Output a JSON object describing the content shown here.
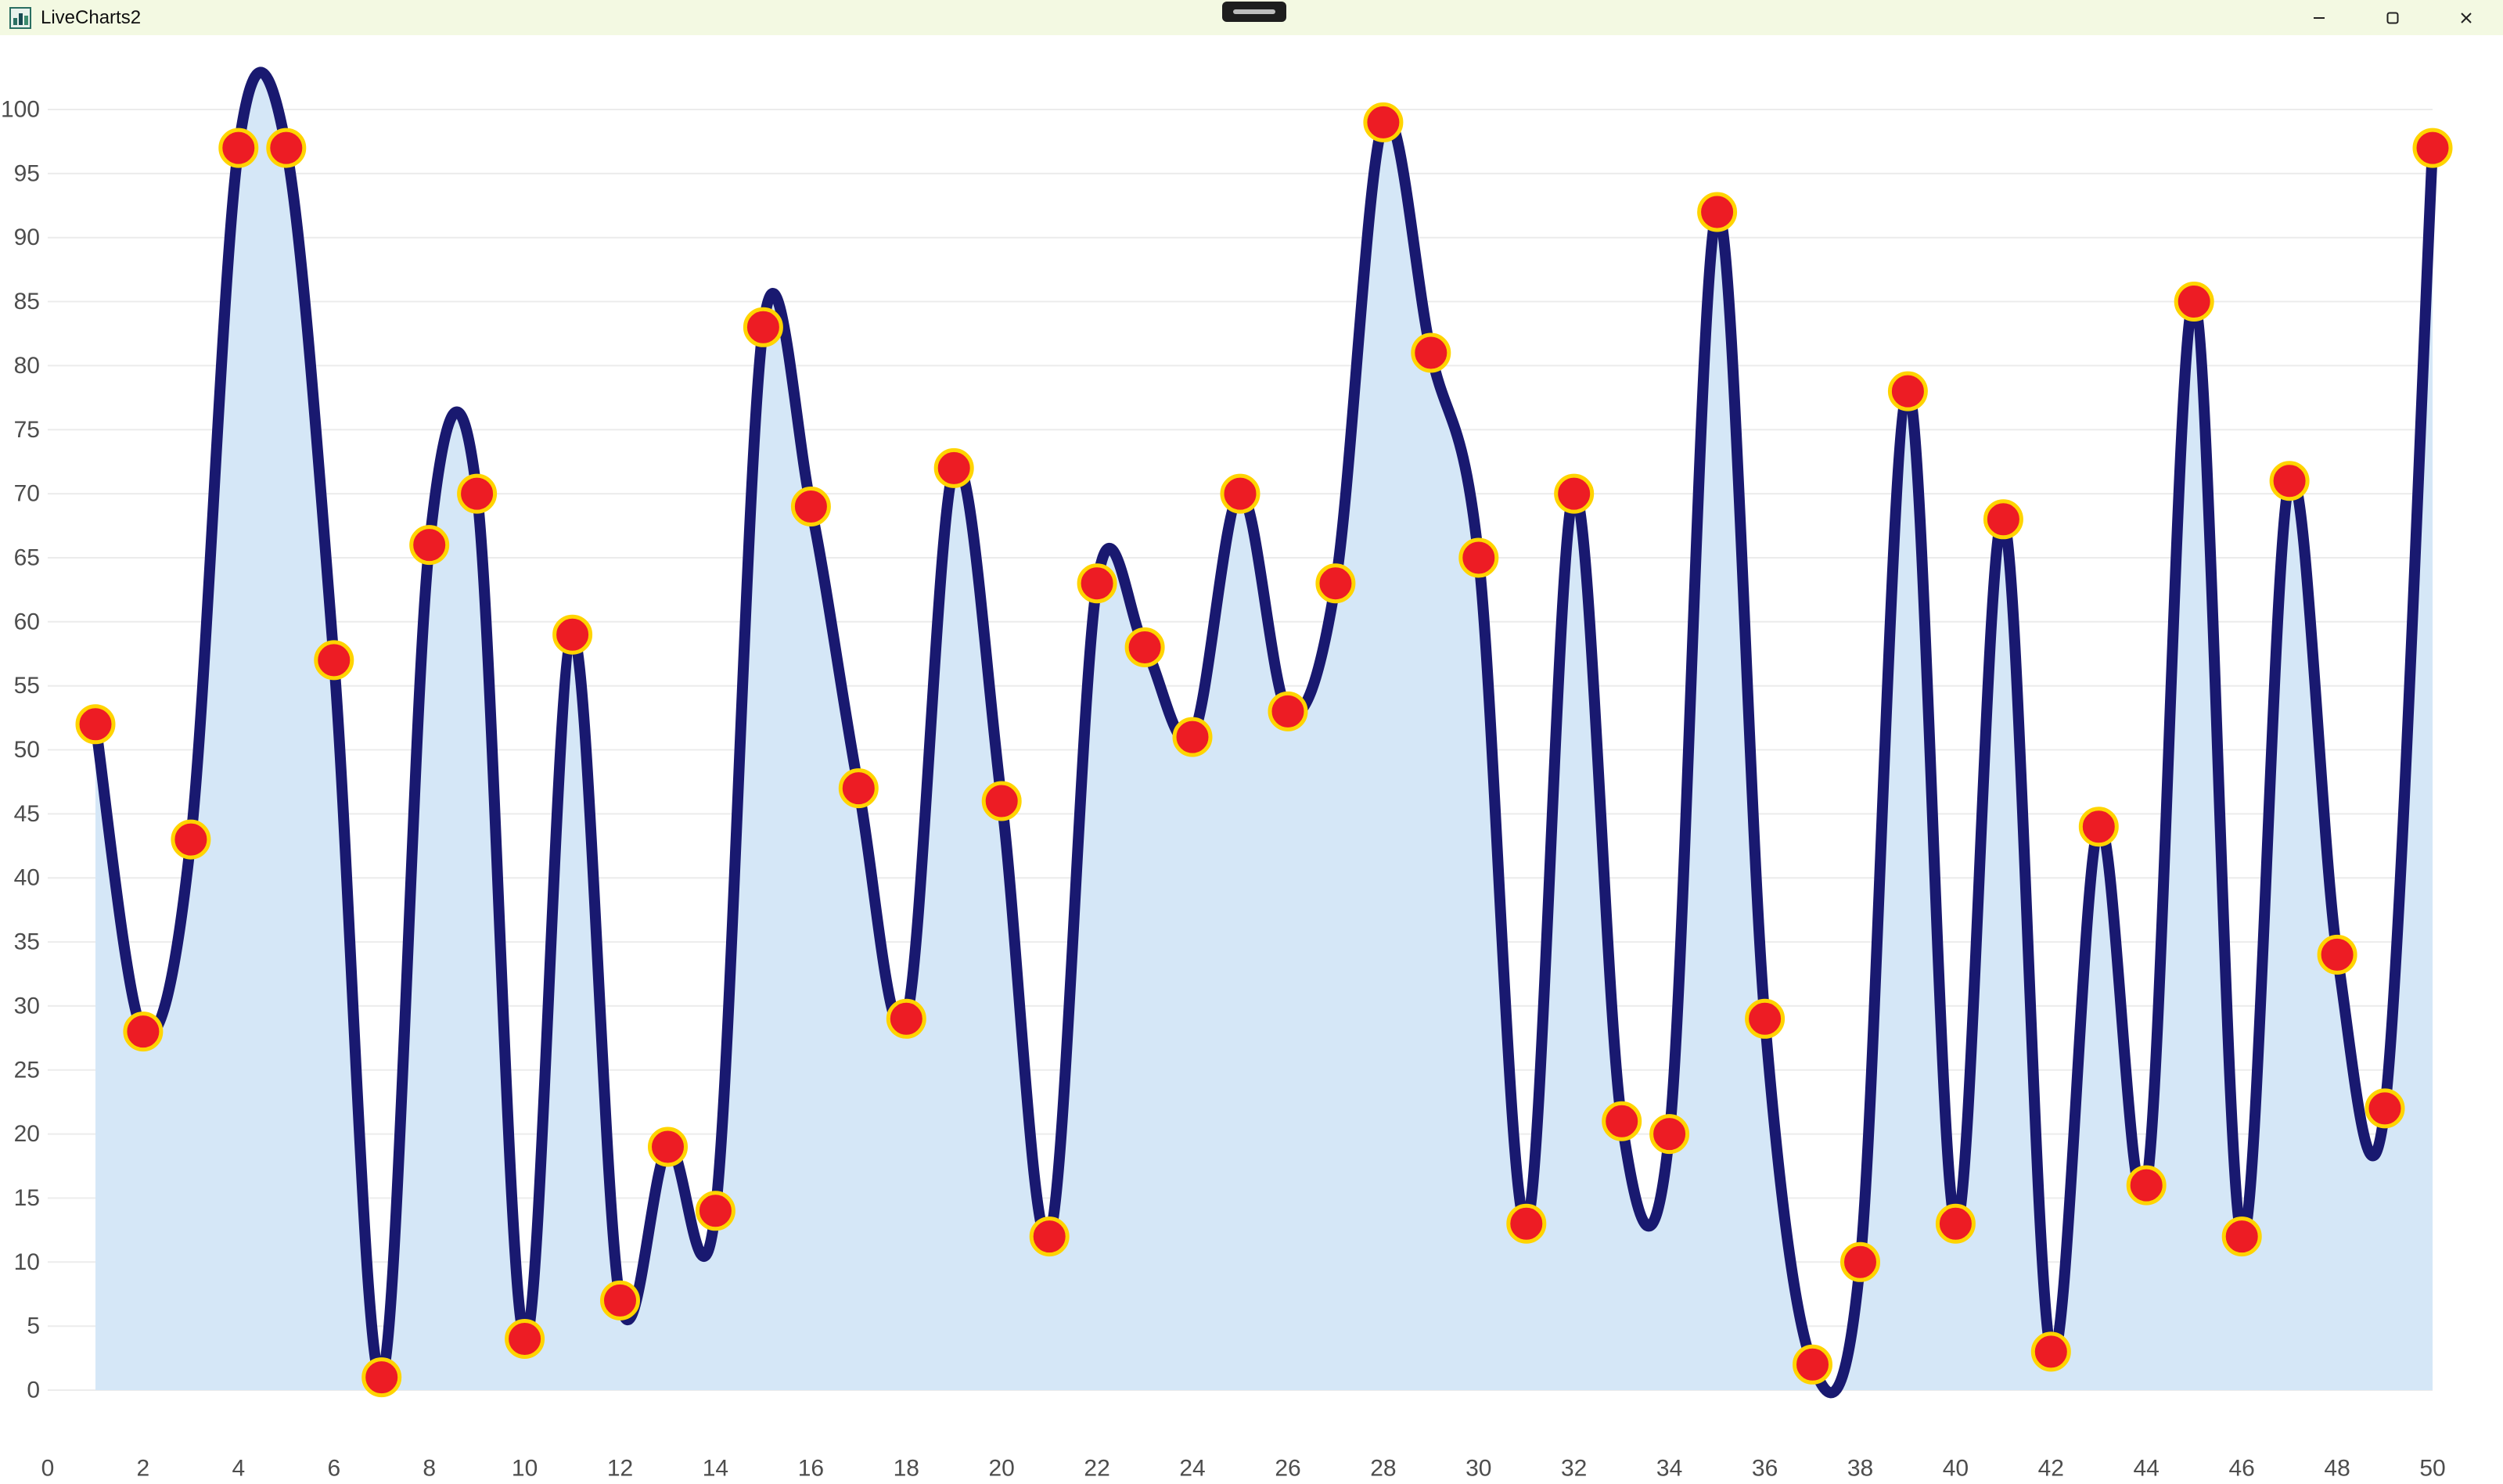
{
  "window": {
    "title": "LiveCharts2",
    "icons": {
      "app": "app-icon",
      "snap": "snap-indicator",
      "minimize": "minimize-icon",
      "maximize": "maximize-icon",
      "close": "close-icon"
    }
  },
  "chart_data": {
    "type": "line",
    "title": "",
    "xlabel": "",
    "ylabel": "",
    "x": [
      1,
      2,
      3,
      4,
      5,
      6,
      7,
      8,
      9,
      10,
      11,
      12,
      13,
      14,
      15,
      16,
      17,
      18,
      19,
      20,
      21,
      22,
      23,
      24,
      25,
      26,
      27,
      28,
      29,
      30,
      31,
      32,
      33,
      34,
      35,
      36,
      37,
      38,
      39,
      40,
      41,
      42,
      43,
      44,
      45,
      46,
      47,
      48,
      49,
      50
    ],
    "values": [
      52,
      28,
      43,
      97,
      97,
      57,
      1,
      66,
      70,
      4,
      59,
      7,
      19,
      14,
      83,
      69,
      47,
      29,
      72,
      46,
      12,
      63,
      58,
      51,
      70,
      53,
      63,
      99,
      81,
      65,
      13,
      70,
      21,
      20,
      92,
      29,
      2,
      10,
      78,
      13,
      68,
      3,
      44,
      16,
      85,
      12,
      71,
      34,
      22,
      97
    ],
    "xlim": [
      0,
      50
    ],
    "ylim": [
      0,
      100
    ],
    "x_ticks": [
      0,
      2,
      4,
      6,
      8,
      10,
      12,
      14,
      16,
      18,
      20,
      22,
      24,
      26,
      28,
      30,
      32,
      34,
      36,
      38,
      40,
      42,
      44,
      46,
      48,
      50
    ],
    "y_ticks": [
      0,
      5,
      10,
      15,
      20,
      25,
      30,
      35,
      40,
      45,
      50,
      55,
      60,
      65,
      70,
      75,
      80,
      85,
      90,
      95,
      100
    ],
    "grid": "horizontal",
    "legend": "none",
    "line_color": "#191970",
    "area_color": "#d5e7f7",
    "point_fill": "#ed1c24",
    "point_stroke": "#ffd400",
    "grid_color": "#ececec",
    "axis_label_color": "#4d4d4d"
  }
}
